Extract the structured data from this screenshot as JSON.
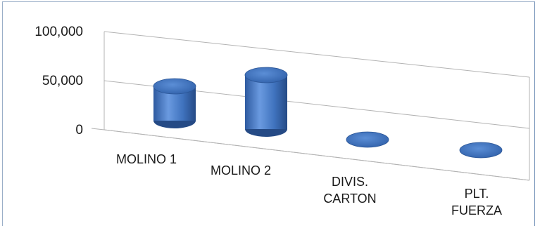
{
  "chart_data": {
    "type": "bar",
    "style": "3d-cylinder",
    "categories": [
      "MOLINO 1",
      "MOLINO 2",
      "DIVIS. CARTON",
      "PLT. FUERZA"
    ],
    "category_lines": [
      [
        "MOLINO 1"
      ],
      [
        "MOLINO 2"
      ],
      [
        "DIVIS.",
        "CARTON"
      ],
      [
        "PLT.",
        "FUERZA"
      ]
    ],
    "values": [
      35000,
      55000,
      0,
      0
    ],
    "ylim": [
      0,
      100000
    ],
    "yticks": [
      "0",
      "50,000",
      "100,000"
    ],
    "grid": true,
    "bar_color": "#4a7ec8",
    "title": "",
    "xlabel": "",
    "ylabel": ""
  }
}
